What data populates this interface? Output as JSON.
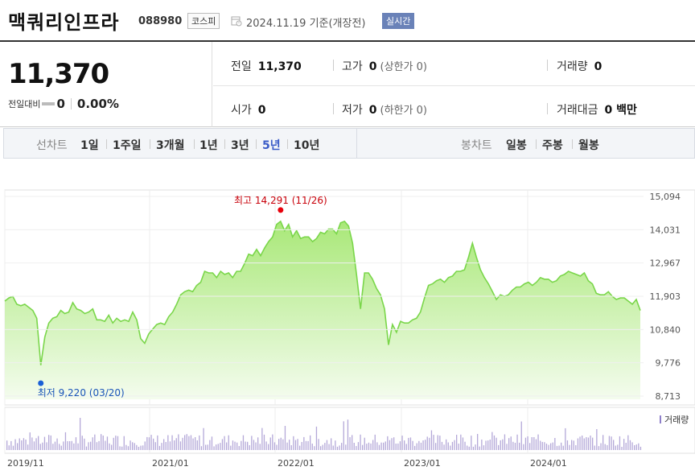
{
  "header": {
    "name": "맥쿼리인프라",
    "code": "088980",
    "market": "코스피",
    "date": "2024.11.19 기준(개장전)",
    "realtime": "실시간"
  },
  "quote": {
    "price": "11,370",
    "change_label": "전일대비",
    "change": "0",
    "change_pct": "0.00%",
    "prev_close": {
      "label": "전일",
      "value": "11,370"
    },
    "high": {
      "label": "고가",
      "value": "0",
      "sub": "(상한가 0)"
    },
    "volume": {
      "label": "거래량",
      "value": "0"
    },
    "open": {
      "label": "시가",
      "value": "0"
    },
    "low": {
      "label": "저가",
      "value": "0",
      "sub": "(하한가 0)"
    },
    "amount": {
      "label": "거래대금",
      "value": "0 백만"
    }
  },
  "period_tabs": {
    "label": "선차트",
    "items": [
      "1일",
      "1주일",
      "3개월",
      "1년",
      "3년",
      "5년",
      "10년"
    ],
    "selected": "5년"
  },
  "candle_tabs": {
    "label": "봉차트",
    "items": [
      "일봉",
      "주봉",
      "월봉"
    ]
  },
  "colors": {
    "line": "#7ad64a",
    "high": "#e8000b",
    "low": "#1a5fd6",
    "volume": "#b4a8d8",
    "selected_tab": "#3a5bc7"
  },
  "chart_data": {
    "type": "area",
    "y_ticks": [
      "15,094",
      "14,031",
      "12,967",
      "11,903",
      "10,840",
      "9,776",
      "8,713"
    ],
    "ylim": [
      8713,
      15094
    ],
    "x_ticks": [
      "2019/11",
      "2021/01",
      "2022/01",
      "2023/01",
      "2024/01"
    ],
    "high_label": "최고 14,291 (11/26)",
    "low_label": "최저 9,220 (03/20)",
    "volume_label": "거래량",
    "series": [
      {
        "values": [
          11750,
          11850,
          11900,
          11650,
          11600,
          11650,
          11550,
          11450,
          11200,
          9700,
          10600,
          11050,
          11200,
          11250,
          11450,
          11350,
          11400,
          11700,
          11500,
          11450,
          11350,
          11400,
          11500,
          11150,
          11150,
          11100,
          11300,
          11050,
          11200,
          11100,
          11150,
          11100,
          11400,
          11150,
          10550,
          10400,
          10700,
          10850,
          11000,
          11050,
          11000,
          11250,
          11400,
          11650,
          11950,
          12050,
          12100,
          12050,
          12250,
          12350,
          12700,
          12650,
          12650,
          12500,
          12700,
          12600,
          12650,
          12500,
          12700,
          12700,
          12950,
          13250,
          13200,
          13400,
          13200,
          13450,
          13650,
          13800,
          14200,
          14300,
          14000,
          14200,
          13800,
          14000,
          13750,
          13800,
          13800,
          13650,
          13750,
          13950,
          13900,
          14050,
          14050,
          13900,
          14250,
          14300,
          14150,
          13600,
          12600,
          11500,
          12650,
          12650,
          12450,
          12150,
          11950,
          11500,
          10350,
          11000,
          10750,
          11100,
          11050,
          11050,
          11150,
          11200,
          11400,
          11850,
          12250,
          12300,
          12400,
          12450,
          12350,
          12500,
          12550,
          12700,
          12700,
          12750,
          13150,
          13600,
          13150,
          12750,
          12500,
          12300,
          12050,
          11800,
          11950,
          11900,
          11950,
          12100,
          12200,
          12200,
          12300,
          12350,
          12250,
          12350,
          12500,
          12450,
          12450,
          12350,
          12400,
          12550,
          12600,
          12700,
          12650,
          12600,
          12550,
          12650,
          12400,
          12300,
          12000,
          11950,
          11950,
          12050,
          11900,
          11800,
          11850,
          11850,
          11750,
          11650,
          11800,
          11450
        ]
      }
    ]
  }
}
